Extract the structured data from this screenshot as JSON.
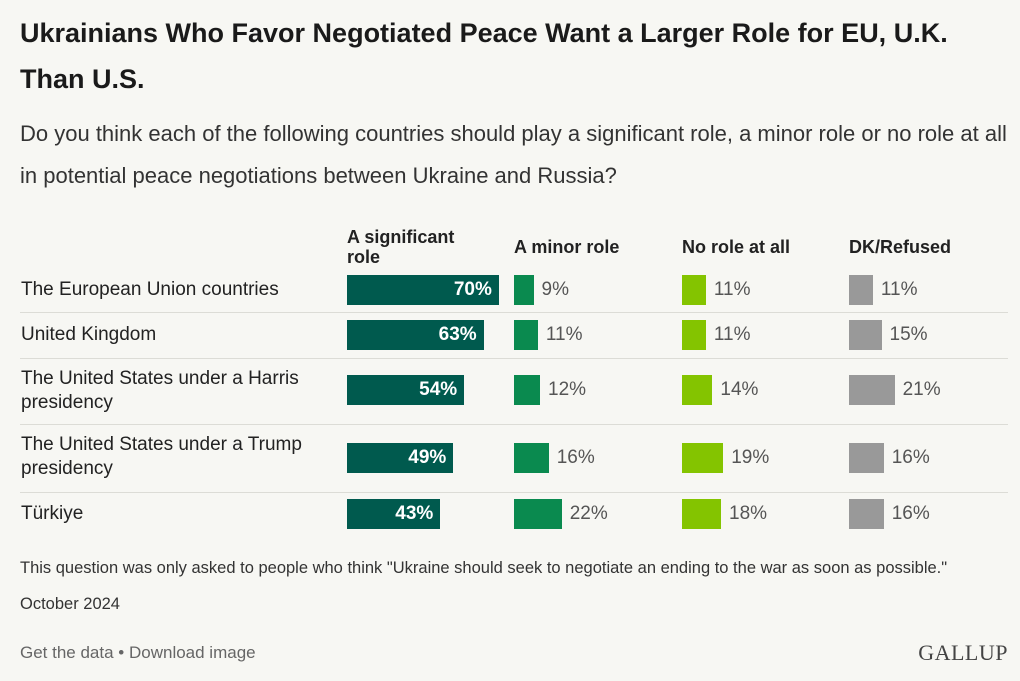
{
  "title": "Ukrainians Who Favor Negotiated Peace Want a Larger Role for EU, U.K. Than U.S.",
  "subtitle": "Do you think each of the following countries should play a significant role, a minor role or no role at all in potential peace negotiations between Ukraine and Russia?",
  "note": "This question was only asked to people who think \"Ukraine should seek to negotiate an ending to the war as soon as possible.\"",
  "date": "October 2024",
  "footer": {
    "get_data": "Get the data",
    "separator": " • ",
    "download": "Download image"
  },
  "logo": "GALLUP",
  "colors": {
    "significant": "#005a4e",
    "minor": "#0a8a4f",
    "no_role": "#84c400",
    "dk": "#999999"
  },
  "chart_data": {
    "type": "bar",
    "categories": [
      "The European Union countries",
      "United Kingdom",
      "The United States under a Harris presidency",
      "The United States under a Trump presidency",
      "Türkiye"
    ],
    "series": [
      {
        "name": "A significant role",
        "values": [
          70,
          63,
          54,
          49,
          43
        ]
      },
      {
        "name": "A minor role",
        "values": [
          9,
          11,
          12,
          16,
          22
        ]
      },
      {
        "name": "No role at all",
        "values": [
          11,
          11,
          14,
          19,
          18
        ]
      },
      {
        "name": "DK/Refused",
        "values": [
          11,
          15,
          21,
          16,
          16
        ]
      }
    ],
    "value_suffix": "%"
  }
}
